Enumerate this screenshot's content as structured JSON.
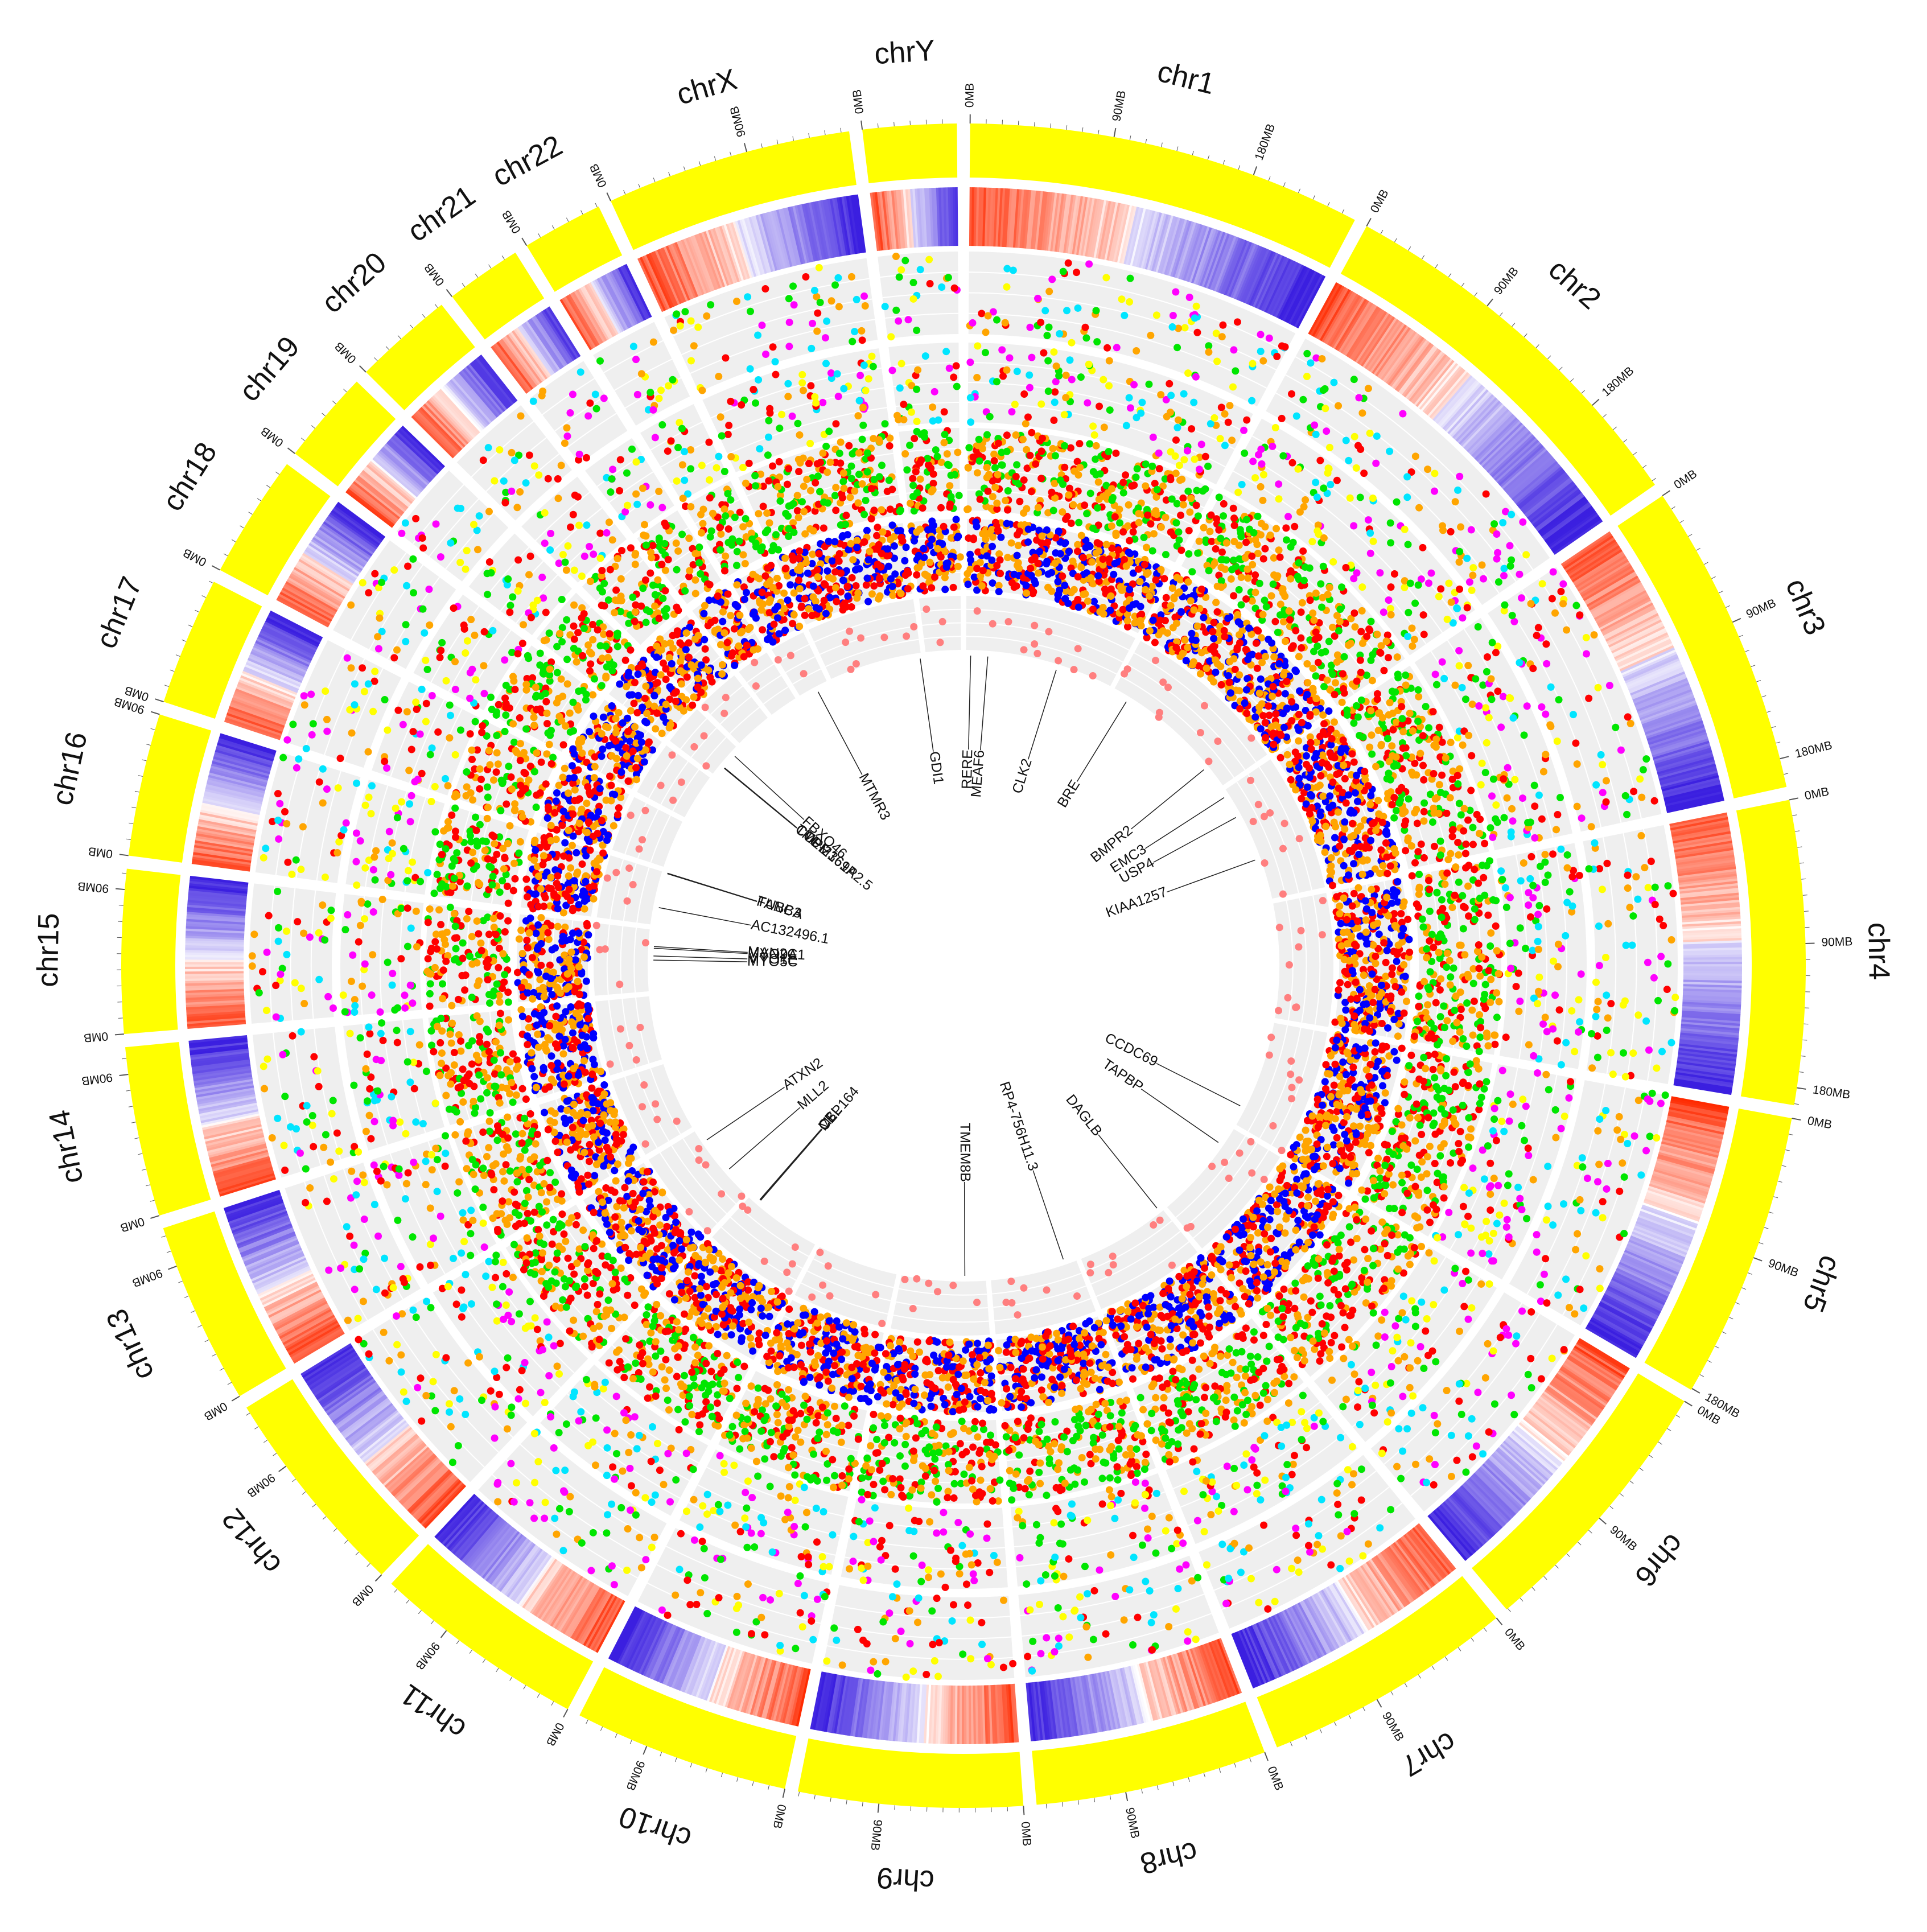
{
  "chart_data": {
    "type": "circos",
    "title": "",
    "units": "MB",
    "chromosomes": [
      {
        "name": "chr1",
        "size": 249,
        "ticks": [
          "0MB",
          "90MB",
          "180MB"
        ]
      },
      {
        "name": "chr2",
        "size": 243,
        "ticks": [
          "0MB",
          "90MB",
          "180MB"
        ]
      },
      {
        "name": "chr3",
        "size": 198,
        "ticks": [
          "0MB",
          "90MB",
          "180MB"
        ]
      },
      {
        "name": "chr4",
        "size": 191,
        "ticks": [
          "0MB",
          "90MB",
          "180MB"
        ]
      },
      {
        "name": "chr5",
        "size": 181,
        "ticks": [
          "0MB",
          "90MB",
          "180MB"
        ]
      },
      {
        "name": "chr6",
        "size": 171,
        "ticks": [
          "0MB",
          "90MB"
        ]
      },
      {
        "name": "chr7",
        "size": 159,
        "ticks": [
          "0MB",
          "90MB"
        ]
      },
      {
        "name": "chr8",
        "size": 146,
        "ticks": [
          "0MB",
          "90MB"
        ]
      },
      {
        "name": "chr9",
        "size": 141,
        "ticks": [
          "0MB",
          "90MB"
        ]
      },
      {
        "name": "chr10",
        "size": 136,
        "ticks": [
          "0MB",
          "90MB"
        ]
      },
      {
        "name": "chr11",
        "size": 135,
        "ticks": [
          "0MB",
          "90MB"
        ]
      },
      {
        "name": "chr12",
        "size": 134,
        "ticks": [
          "0MB",
          "90MB"
        ]
      },
      {
        "name": "chr13",
        "size": 115,
        "ticks": [
          "0MB",
          "90MB"
        ]
      },
      {
        "name": "chr14",
        "size": 107,
        "ticks": [
          "0MB",
          "90MB"
        ]
      },
      {
        "name": "chr15",
        "size": 103,
        "ticks": [
          "0MB",
          "90MB"
        ]
      },
      {
        "name": "chr16",
        "size": 90,
        "ticks": [
          "0MB",
          "90MB"
        ]
      },
      {
        "name": "chr17",
        "size": 81,
        "ticks": [
          "0MB"
        ]
      },
      {
        "name": "chr18",
        "size": 78,
        "ticks": [
          "0MB"
        ]
      },
      {
        "name": "chr19",
        "size": 59,
        "ticks": [
          "0MB"
        ]
      },
      {
        "name": "chr20",
        "size": 63,
        "ticks": [
          "0MB"
        ]
      },
      {
        "name": "chr21",
        "size": 48,
        "ticks": [
          "0MB"
        ]
      },
      {
        "name": "chr22",
        "size": 51,
        "ticks": [
          "0MB"
        ]
      },
      {
        "name": "chrX",
        "size": 155,
        "ticks": [
          "0MB",
          "90MB"
        ]
      },
      {
        "name": "chrY",
        "size": 59,
        "ticks": [
          "0MB"
        ]
      }
    ],
    "tracks": [
      {
        "name": "ideogram",
        "type": "ideogram",
        "color": "#ffff00"
      },
      {
        "name": "heatmap",
        "type": "heatmap",
        "colors": [
          "#3b1fe0",
          "#ffffff",
          "#ff2a00"
        ]
      },
      {
        "name": "scatter-1",
        "type": "scatter",
        "colors": [
          "#00e600",
          "#ff00ff",
          "#00e5ff",
          "#ffff00",
          "#ff0000",
          "#ffa500"
        ]
      },
      {
        "name": "scatter-2",
        "type": "scatter",
        "colors": [
          "#00e600",
          "#ff00ff",
          "#00e5ff",
          "#ffff00",
          "#ff0000",
          "#ffa500"
        ]
      },
      {
        "name": "scatter-3",
        "type": "scatter",
        "colors": [
          "#ffa500",
          "#00e600",
          "#ff0000"
        ]
      },
      {
        "name": "scatter-4",
        "type": "scatter",
        "colors": [
          "#0000ff",
          "#ffa500",
          "#ff0000"
        ]
      },
      {
        "name": "scatter-5",
        "type": "scatter",
        "colors": [
          "#ff7f7f"
        ]
      }
    ],
    "genes": [
      {
        "label": "RERE",
        "chr": "chr1",
        "pos": 8
      },
      {
        "label": "MEAF6",
        "chr": "chr1",
        "pos": 37
      },
      {
        "label": "CLK2",
        "chr": "chr1",
        "pos": 155
      },
      {
        "label": "BRE",
        "chr": "chr2",
        "pos": 28
      },
      {
        "label": "BMPR2",
        "chr": "chr2",
        "pos": 203
      },
      {
        "label": "USP4",
        "chr": "chr3",
        "pos": 49
      },
      {
        "label": "KIAA1257",
        "chr": "chr3",
        "pos": 128
      },
      {
        "label": "CCDC69",
        "chr": "chr5",
        "pos": 150
      },
      {
        "label": "TAPBP",
        "chr": "chr6",
        "pos": 33
      },
      {
        "label": "DAGLB",
        "chr": "chr7",
        "pos": 6
      },
      {
        "label": "GDI1",
        "chr": "chrX",
        "pos": 153
      },
      {
        "label": "RP4-756H11.3",
        "chr": "chr8",
        "pos": 20
      },
      {
        "label": "CEP164",
        "chr": "chr11",
        "pos": 117
      },
      {
        "label": "CBL",
        "chr": "chr11",
        "pos": 119
      },
      {
        "label": "MLL",
        "chr": "chr11",
        "pos": 118
      },
      {
        "label": "MLL2",
        "chr": "chr12",
        "pos": 49
      },
      {
        "label": "ATXN2",
        "chr": "chr12",
        "pos": 111
      },
      {
        "label": "MYO1E",
        "chr": "chr15",
        "pos": 59
      },
      {
        "label": "MYO9A",
        "chr": "chr15",
        "pos": 72
      },
      {
        "label": "MYO5C",
        "chr": "chr15",
        "pos": 52
      },
      {
        "label": "MAN2C1",
        "chr": "chr15",
        "pos": 75
      },
      {
        "label": "FANCA",
        "chr": "chr16",
        "pos": 89
      },
      {
        "label": "AC132496.1",
        "chr": "chr16",
        "pos": 30
      },
      {
        "label": "TUBB3",
        "chr": "chr16",
        "pos": 90
      },
      {
        "label": "CTD-2369P2.5",
        "chr": "chr19",
        "pos": 20
      },
      {
        "label": "COPE",
        "chr": "chr19",
        "pos": 19
      },
      {
        "label": "FBXO46",
        "chr": "chr19",
        "pos": 46
      },
      {
        "label": "TMEM161A",
        "chr": "chr19",
        "pos": 19
      },
      {
        "label": "EMC3",
        "chr": "chr3",
        "pos": 10
      },
      {
        "label": "TMEM8B",
        "chr": "chr9",
        "pos": 35
      },
      {
        "label": "MTMR3",
        "chr": "chr22",
        "pos": 30
      }
    ]
  }
}
